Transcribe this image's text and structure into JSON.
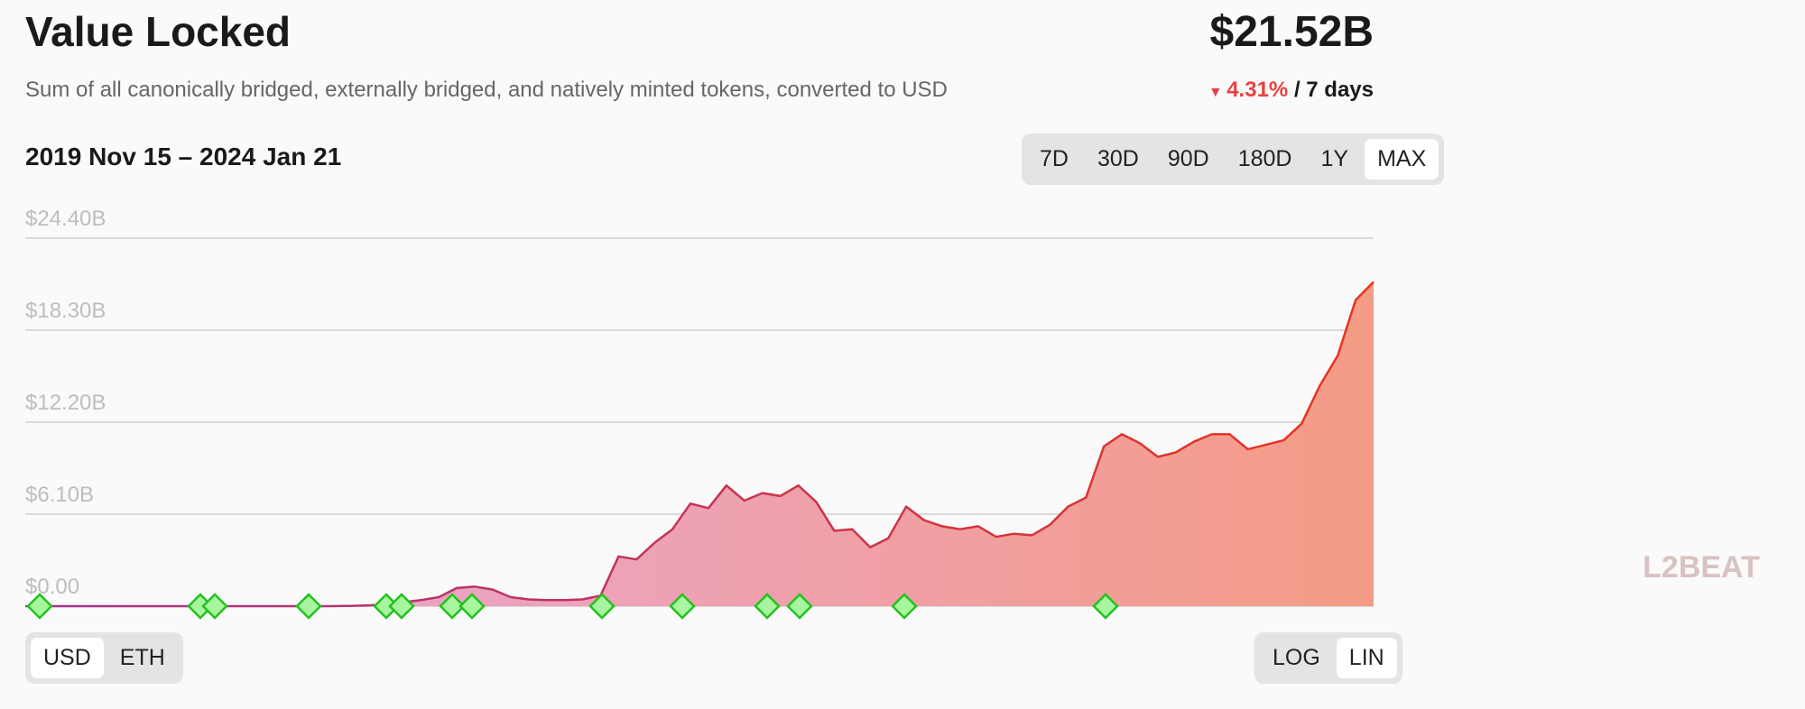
{
  "header": {
    "title": "Value Locked",
    "subtitle": "Sum of all canonically bridged, externally bridged, and natively minted tokens, converted to USD",
    "total": "$21.52B",
    "change": "4.31%",
    "change_period": "/ 7 days",
    "date_range": "2019 Nov 15 – 2024 Jan 21"
  },
  "range_buttons": {
    "labels": [
      "7D",
      "30D",
      "90D",
      "180D",
      "1Y",
      "MAX"
    ],
    "selected": 5
  },
  "unit_buttons": {
    "labels": [
      "USD",
      "ETH"
    ],
    "selected": 0
  },
  "scale_buttons": {
    "labels": [
      "LOG",
      "LIN"
    ],
    "selected": 1
  },
  "watermark": "L2BEAT",
  "chart_data": {
    "type": "area",
    "categories": [
      null,
      null,
      null,
      null,
      null,
      null,
      null,
      null,
      null,
      null,
      null,
      null,
      null,
      null,
      null,
      null,
      null,
      null,
      null,
      null,
      null,
      null,
      null,
      null,
      null,
      null,
      null,
      null,
      null,
      null,
      null,
      null,
      null,
      null,
      null,
      null,
      null,
      null,
      null,
      null,
      null,
      null,
      null,
      null,
      null,
      null,
      null,
      null,
      null,
      null,
      null,
      null,
      null,
      null,
      null,
      null,
      null,
      null,
      null,
      null,
      null,
      null,
      null,
      null,
      null,
      null,
      null,
      null,
      null,
      null,
      null,
      null,
      null,
      null,
      null,
      null
    ],
    "values": [
      0,
      0,
      0,
      0,
      0,
      0,
      0,
      0,
      0,
      0,
      0,
      0,
      0,
      0,
      0,
      0,
      0,
      0,
      0.02,
      0.05,
      0.1,
      0.25,
      0.4,
      0.6,
      1.2,
      1.3,
      1.1,
      0.6,
      0.45,
      0.4,
      0.4,
      0.45,
      0.7,
      3.3,
      3.1,
      4.2,
      5.1,
      6.8,
      6.5,
      8.0,
      7.0,
      7.5,
      7.3,
      8.0,
      6.9,
      5.0,
      5.1,
      3.9,
      4.5,
      6.6,
      5.7,
      5.3,
      5.1,
      5.3,
      4.6,
      4.8,
      4.7,
      5.4,
      6.6,
      7.2,
      10.6,
      11.4,
      10.8,
      9.9,
      10.2,
      10.9,
      11.4,
      11.4,
      10.4,
      10.7,
      11.0,
      12.1,
      14.6,
      16.6,
      20.3,
      21.5
    ],
    "line_colors": [
      "#a3338a",
      "#e8341c"
    ],
    "fill_colors": [
      "#e7a6dc",
      "#f59c86"
    ],
    "ylim": [
      0,
      24.4
    ],
    "yticks": [
      {
        "value": 0,
        "label": "$0.00"
      },
      {
        "value": 6.1,
        "label": "$6.10B"
      },
      {
        "value": 12.2,
        "label": "$12.20B"
      },
      {
        "value": 18.3,
        "label": "$18.30B"
      },
      {
        "value": 24.4,
        "label": "$24.40B"
      }
    ],
    "grid": true
  }
}
